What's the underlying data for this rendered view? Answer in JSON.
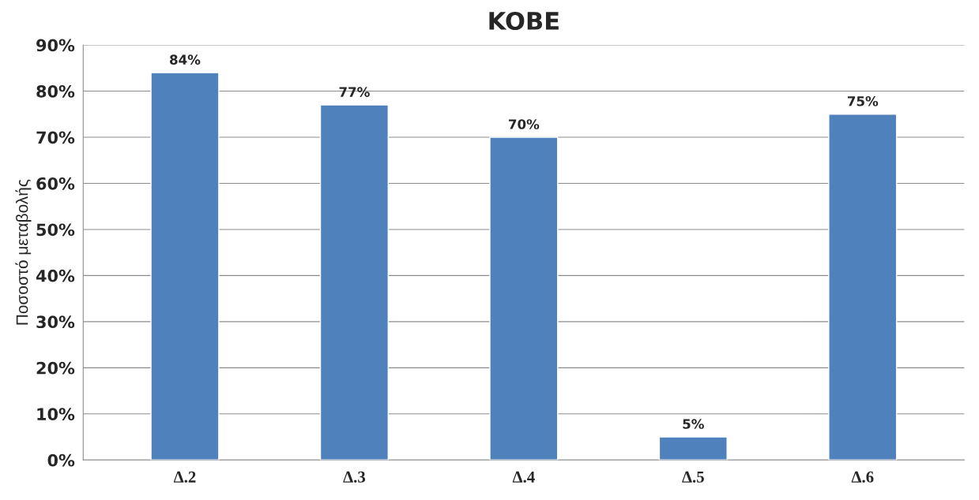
{
  "chart_data": {
    "type": "bar",
    "title": "KOBE",
    "ylabel": "Ποσοστό μεταβολής",
    "categories": [
      "Δ.2",
      "Δ.3",
      "Δ.4",
      "Δ.5",
      "Δ.6"
    ],
    "values": [
      84,
      77,
      70,
      5,
      75
    ],
    "value_labels": [
      "84%",
      "77%",
      "70%",
      "5%",
      "75%"
    ],
    "color": "#4f81bd",
    "ylim": [
      0,
      90
    ],
    "yticks": [
      {
        "value": 0,
        "label": "0%"
      },
      {
        "value": 10,
        "label": "10%"
      },
      {
        "value": 20,
        "label": "20%"
      },
      {
        "value": 30,
        "label": "30%"
      },
      {
        "value": 40,
        "label": "40%"
      },
      {
        "value": 50,
        "label": "50%"
      },
      {
        "value": 60,
        "label": "60%"
      },
      {
        "value": 70,
        "label": "70%"
      },
      {
        "value": 80,
        "label": "80%"
      },
      {
        "value": 90,
        "label": "90%"
      }
    ],
    "grid": "y"
  }
}
